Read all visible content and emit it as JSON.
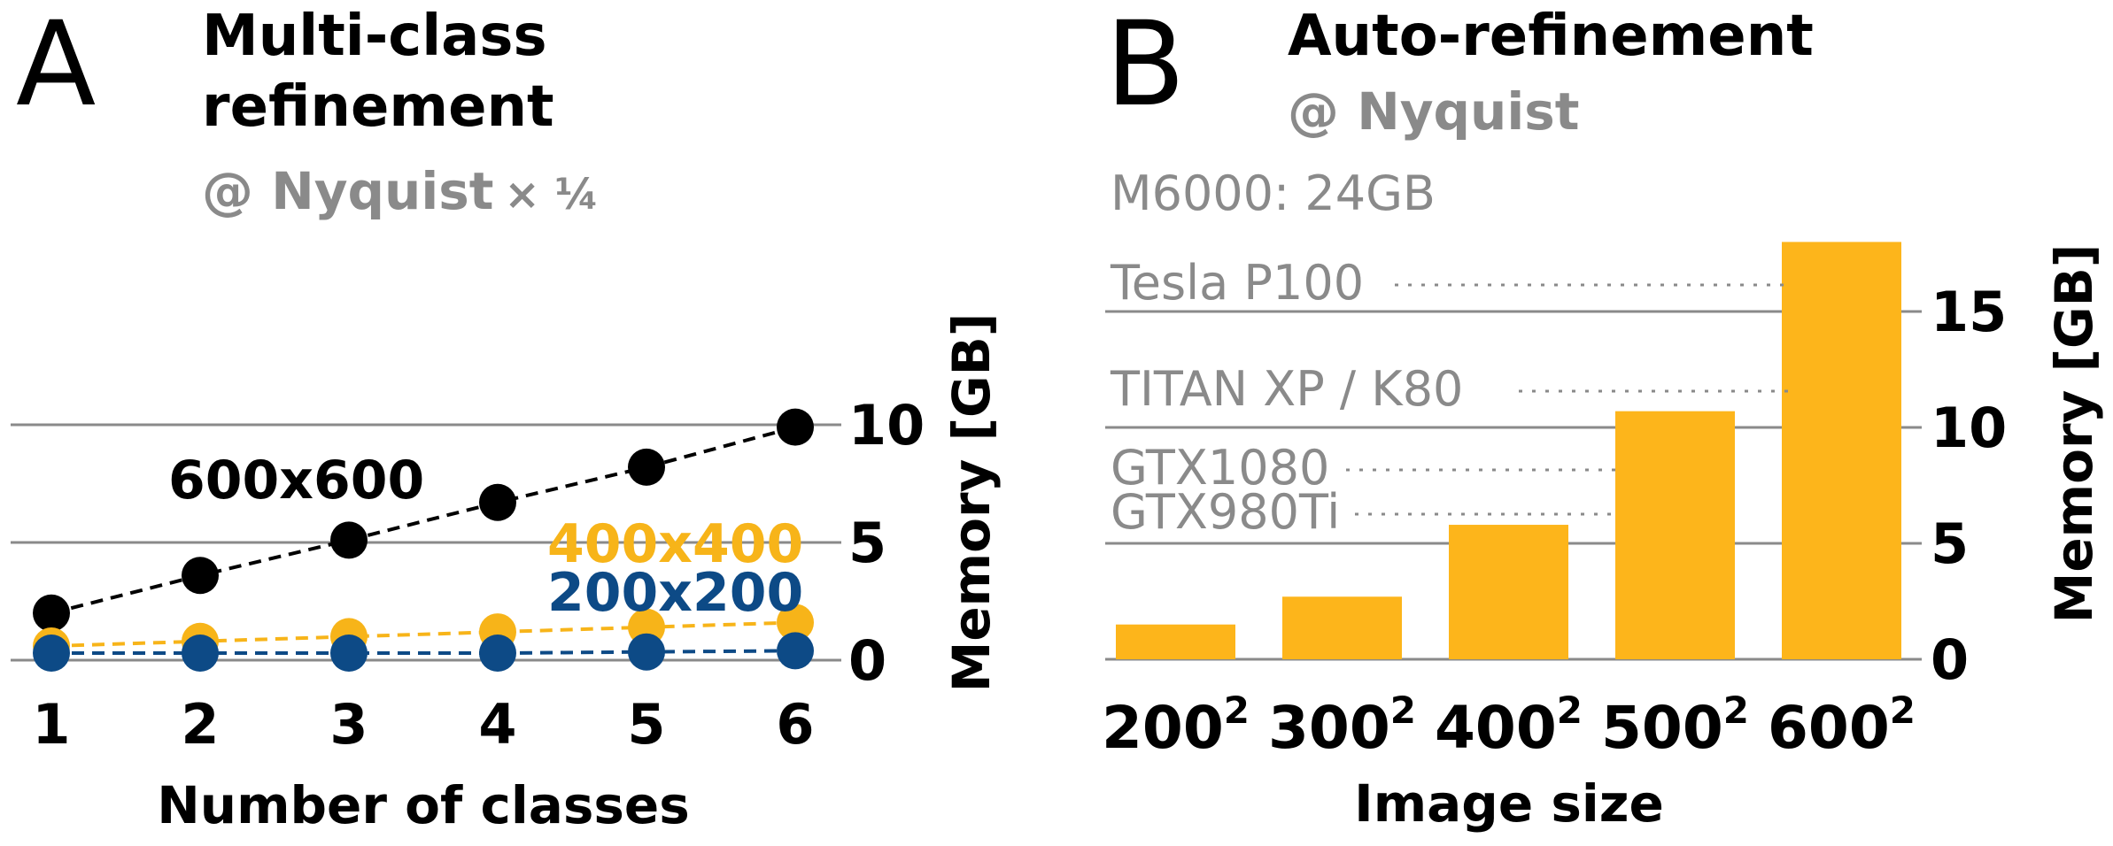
{
  "panel_a": {
    "letter": "A",
    "title_line1": "Multi-class",
    "title_line2": "refinement",
    "subtitle_prefix": "@ Nyquist",
    "subtitle_suffix": "× ¼"
  },
  "panel_b": {
    "letter": "B",
    "title": "Auto-refinement",
    "subtitle": "@ Nyquist"
  },
  "colors": {
    "s600": "#000000",
    "s400": "#F7B419",
    "s200": "#0D4A86",
    "bar": "#FDB51B",
    "gray_text": "#8A8A8A",
    "grid": "#8A8A8A"
  },
  "chart_data": [
    {
      "type": "line",
      "x": [
        1,
        2,
        3,
        4,
        5,
        6
      ],
      "xlabel": "Number of classes",
      "ylabel": "Memory [GB]",
      "ylim": [
        0,
        10
      ],
      "yticks": [
        0,
        5,
        10
      ],
      "grid": true,
      "series": [
        {
          "name": "600x600",
          "values": [
            2.0,
            3.6,
            5.1,
            6.7,
            8.2,
            9.9
          ]
        },
        {
          "name": "400x400",
          "values": [
            0.6,
            0.8,
            1.0,
            1.2,
            1.4,
            1.6
          ]
        },
        {
          "name": "200x200",
          "values": [
            0.3,
            0.3,
            0.3,
            0.3,
            0.35,
            0.4
          ]
        }
      ]
    },
    {
      "type": "bar",
      "categories": [
        "200",
        "300",
        "400",
        "500",
        "600"
      ],
      "category_exponent": "2",
      "values": [
        1.5,
        2.7,
        5.8,
        10.7,
        18.0
      ],
      "xlabel": "Image size",
      "ylabel": "Memory [GB]",
      "ylim": [
        0,
        18
      ],
      "yticks": [
        0,
        5,
        10,
        15
      ],
      "gpu_levels": [
        {
          "name": "M6000: 24GB",
          "value": 24
        },
        {
          "name": "Tesla P100",
          "value": 16
        },
        {
          "name": "TITAN XP / K80",
          "value": 11.5
        },
        {
          "name": "GTX1080",
          "value": 8
        },
        {
          "name": "GTX980Ti",
          "value": 6
        }
      ]
    }
  ]
}
